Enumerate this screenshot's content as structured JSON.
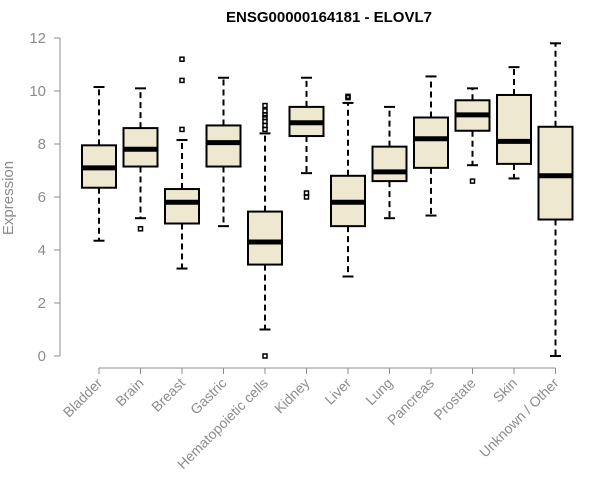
{
  "chart_data": {
    "type": "boxplot",
    "title": "ENSG00000164181 - ELOVL7",
    "xlabel": "",
    "ylabel": "Expression",
    "ylim": [
      0,
      12
    ],
    "yticks": [
      0,
      2,
      4,
      6,
      8,
      10,
      12
    ],
    "box_fill": "#efe8d0",
    "categories": [
      "Bladder",
      "Brain",
      "Breast",
      "Gastric",
      "Hematopoietic cells",
      "Kidney",
      "Liver",
      "Lung",
      "Pancreas",
      "Prostate",
      "Skin",
      "Unknown / Other"
    ],
    "series": [
      {
        "name": "Bladder",
        "whisker_low": 4.35,
        "q1": 6.35,
        "median": 7.1,
        "q3": 7.95,
        "whisker_high": 10.15,
        "outliers": []
      },
      {
        "name": "Brain",
        "whisker_low": 5.2,
        "q1": 7.15,
        "median": 7.8,
        "q3": 8.6,
        "whisker_high": 10.1,
        "outliers": [
          4.8
        ]
      },
      {
        "name": "Breast",
        "whisker_low": 3.3,
        "q1": 5.0,
        "median": 5.8,
        "q3": 6.3,
        "whisker_high": 8.15,
        "outliers": [
          8.55,
          10.4,
          11.2
        ]
      },
      {
        "name": "Gastric",
        "whisker_low": 4.9,
        "q1": 7.15,
        "median": 8.05,
        "q3": 8.7,
        "whisker_high": 10.5,
        "outliers": []
      },
      {
        "name": "Hematopoietic cells",
        "whisker_low": 1.0,
        "q1": 3.45,
        "median": 4.3,
        "q3": 5.45,
        "whisker_high": 8.4,
        "outliers": [
          0.0,
          8.55,
          8.7,
          8.85,
          9.0,
          9.1,
          9.25,
          9.45
        ]
      },
      {
        "name": "Kidney",
        "whisker_low": 6.9,
        "q1": 8.3,
        "median": 8.8,
        "q3": 9.4,
        "whisker_high": 10.5,
        "outliers": [
          6.0,
          6.15
        ]
      },
      {
        "name": "Liver",
        "whisker_low": 3.0,
        "q1": 4.9,
        "median": 5.8,
        "q3": 6.8,
        "whisker_high": 9.55,
        "outliers": [
          9.75,
          9.8
        ]
      },
      {
        "name": "Lung",
        "whisker_low": 5.2,
        "q1": 6.6,
        "median": 6.95,
        "q3": 7.9,
        "whisker_high": 9.4,
        "outliers": []
      },
      {
        "name": "Pancreas",
        "whisker_low": 5.3,
        "q1": 7.1,
        "median": 8.2,
        "q3": 9.0,
        "whisker_high": 10.55,
        "outliers": []
      },
      {
        "name": "Prostate",
        "whisker_low": 7.2,
        "q1": 8.5,
        "median": 9.1,
        "q3": 9.65,
        "whisker_high": 10.1,
        "outliers": [
          6.6
        ]
      },
      {
        "name": "Skin",
        "whisker_low": 6.7,
        "q1": 7.25,
        "median": 8.1,
        "q3": 9.85,
        "whisker_high": 10.9,
        "outliers": []
      },
      {
        "name": "Unknown / Other",
        "whisker_low": 0.0,
        "q1": 5.15,
        "median": 6.8,
        "q3": 8.65,
        "whisker_high": 11.8,
        "outliers": []
      }
    ]
  }
}
